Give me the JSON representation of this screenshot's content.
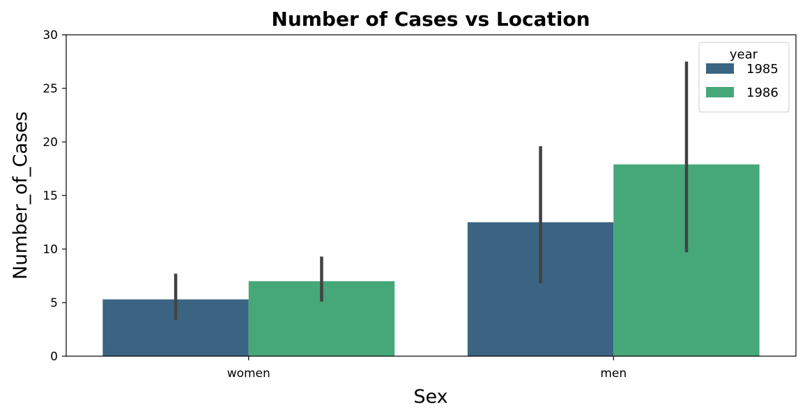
{
  "chart_data": {
    "type": "bar",
    "title": "Number of Cases vs Location",
    "xlabel": "Sex",
    "ylabel": "Number_of_Cases",
    "categories": [
      "women",
      "men"
    ],
    "ylim": [
      0,
      30
    ],
    "yticks": [
      0,
      5,
      10,
      15,
      20,
      25,
      30
    ],
    "grid": false,
    "legend": {
      "title": "year",
      "placement": "top-right"
    },
    "series": [
      {
        "name": "1985",
        "color": "#3b6482",
        "values": [
          5.3,
          12.5
        ],
        "ci_low": [
          3.4,
          6.8
        ],
        "ci_high": [
          7.7,
          19.6
        ]
      },
      {
        "name": "1986",
        "color": "#46a878",
        "values": [
          7.0,
          17.9
        ],
        "ci_low": [
          5.1,
          9.7
        ],
        "ci_high": [
          9.3,
          27.5
        ]
      }
    ]
  }
}
